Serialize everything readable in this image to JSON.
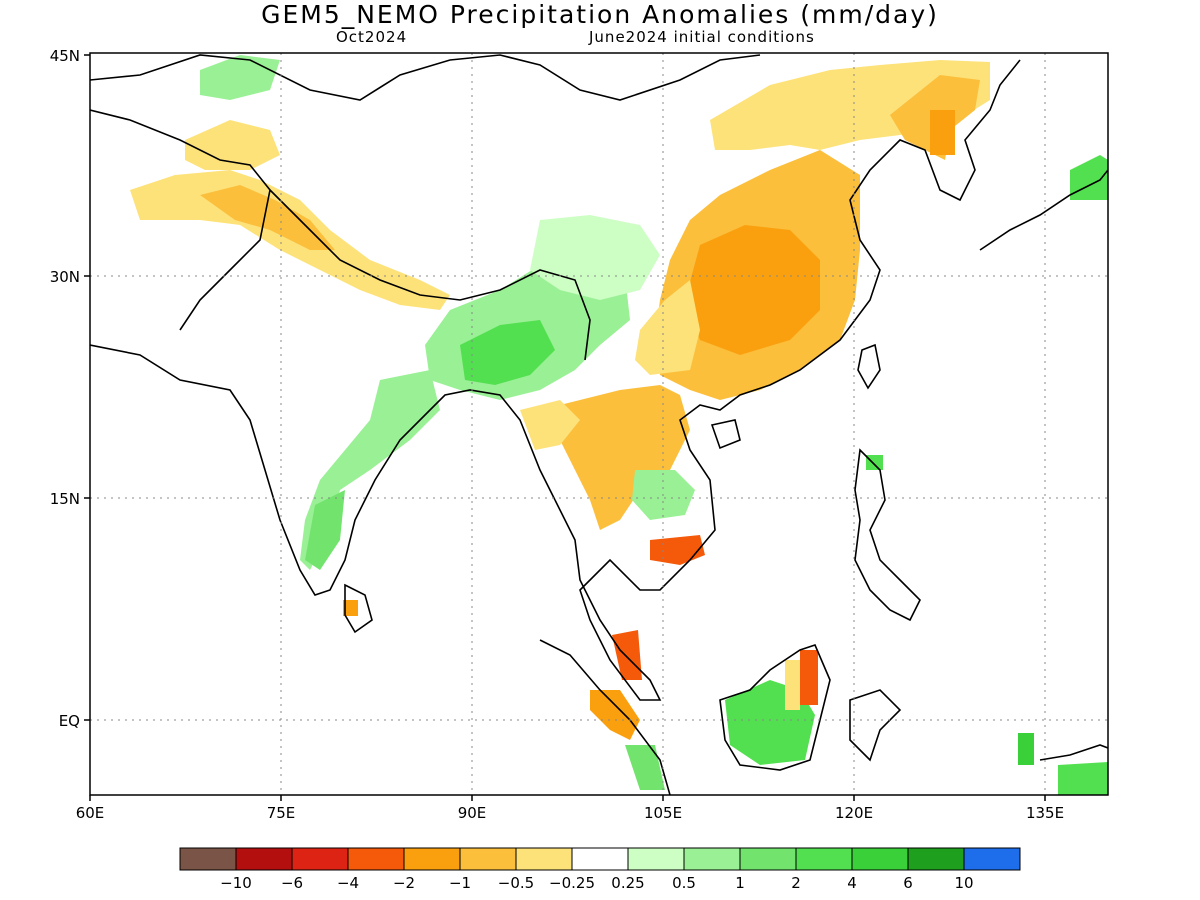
{
  "title": "GEM5_NEMO Precipitation Anomalies (mm/day)",
  "subtitle_left": "Oct2024",
  "subtitle_right": "June2024 initial conditions",
  "lat_labels": [
    "45N",
    "30N",
    "15N",
    "EQ"
  ],
  "lon_labels": [
    "60E",
    "75E",
    "90E",
    "105E",
    "120E",
    "135E"
  ],
  "colorbar": {
    "colors": [
      "#7a5446",
      "#b40f0f",
      "#dc2314",
      "#f55a0a",
      "#faa00f",
      "#fbbf3c",
      "#fde27a",
      "#ffffff",
      "#cdffc5",
      "#9af095",
      "#72e46e",
      "#52e050",
      "#3ad03a",
      "#1ea01e",
      "#1e6eeb"
    ],
    "tick_labels": [
      "-10",
      "-6",
      "-4",
      "-2",
      "-1",
      "-0.5",
      "-0.25",
      "0.25",
      "0.5",
      "1",
      "2",
      "4",
      "6",
      "10"
    ]
  },
  "map_data": {
    "projection": "lat-lon",
    "lon_range": [
      60,
      140
    ],
    "lat_range": [
      -6,
      45
    ],
    "grid": "dotted at 15° intervals"
  }
}
